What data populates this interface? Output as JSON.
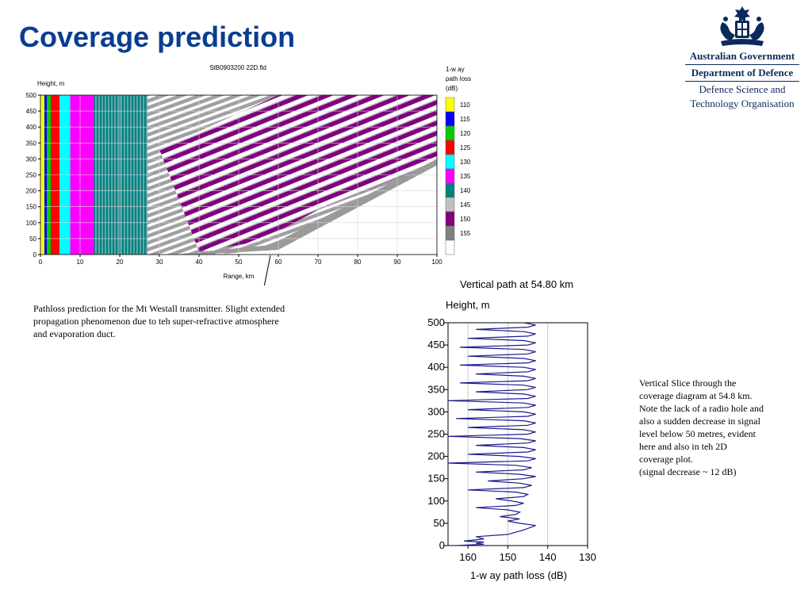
{
  "title": "Coverage prediction",
  "logo": {
    "line1": "Australian Government",
    "line2": "Department of Defence",
    "line3": "Defence Science and",
    "line4": "Technology Organisation"
  },
  "caption_left": {
    "line1": "Pathloss prediction  for the Mt Westall transmitter. Slight extended",
    "line2": "propagation phenomenon due to teh super-refractive atmosphere",
    "line3": "and evaporation duct."
  },
  "caption_right": {
    "lines": [
      "Vertical Slice through the",
      "coverage diagram at 54.8 km.",
      "Note the lack of a radio hole and",
      "also a sudden decrease in signal",
      "level below 50 metres, evident",
      "here and also in teh 2D",
      "coverage plot.",
      "(signal decrease ~ 12 dB)"
    ]
  },
  "colors": {
    "title": "#0a3d91",
    "purple": "#800080",
    "grey": "#a0a0a0",
    "teal": "#008080"
  },
  "chart_data": [
    {
      "type": "heatmap",
      "title": "StB0903200 22D.fld",
      "ylabel": "Height, m",
      "xlabel": "Range, km",
      "xlim": [
        0,
        100
      ],
      "ylim": [
        0,
        500
      ],
      "x_ticks": [
        "0",
        "10",
        "20",
        "30",
        "40",
        "50",
        "60",
        "70",
        "80",
        "90",
        "100"
      ],
      "y_ticks": [
        "0",
        "50",
        "100",
        "150",
        "200",
        "250",
        "300",
        "350",
        "400",
        "450",
        "500"
      ],
      "grid": true,
      "legend_title": [
        "1-w ay",
        "path loss",
        "(dB)"
      ],
      "legend": [
        {
          "label": "110",
          "color": "#ffff00"
        },
        {
          "label": "115",
          "color": "#0000ff"
        },
        {
          "label": "120",
          "color": "#00cc00"
        },
        {
          "label": "125",
          "color": "#ff0000"
        },
        {
          "label": "130",
          "color": "#00ffff"
        },
        {
          "label": "135",
          "color": "#ff00ff"
        },
        {
          "label": "140",
          "color": "#008080"
        },
        {
          "label": "145",
          "color": "#c0c0c0"
        },
        {
          "label": "150",
          "color": "#800080"
        },
        {
          "label": "155",
          "color": "#808080"
        },
        {
          "label": "",
          "color": "#ffffff"
        }
      ],
      "vertical_bands": [
        {
          "x0": 0,
          "x1": 1,
          "color": "#ffff00"
        },
        {
          "x0": 1,
          "x1": 1.6,
          "color": "#0000ff"
        },
        {
          "x0": 1.6,
          "x1": 2.6,
          "color": "#00cc00"
        },
        {
          "x0": 2.6,
          "x1": 4.8,
          "color": "#ff0000"
        },
        {
          "x0": 4.8,
          "x1": 7.5,
          "color": "#00ffff"
        },
        {
          "x0": 7.5,
          "x1": 13.5,
          "color": "#ff00ff"
        },
        {
          "x0": 13.5,
          "x1": 27,
          "color": "#008080"
        }
      ]
    },
    {
      "type": "line",
      "title": "Vertical path at 54.80 km",
      "ylabel": "Height, m",
      "xlabel": "1-w ay path loss (dB)",
      "xlim": [
        165,
        130
      ],
      "ylim": [
        0,
        500
      ],
      "x_ticks": [
        "160",
        "150",
        "140",
        "130"
      ],
      "y_ticks": [
        "0",
        "50",
        "100",
        "150",
        "200",
        "250",
        "300",
        "350",
        "400",
        "450",
        "500"
      ],
      "grid": true,
      "series": [
        {
          "values_loss_db": [
            163,
            156,
            158,
            156,
            161,
            156,
            158,
            150,
            146,
            143,
            147,
            150,
            147,
            152,
            148,
            147,
            150,
            158,
            148,
            146,
            149,
            153,
            146,
            145,
            148,
            160,
            146,
            144,
            147,
            155,
            146,
            143,
            147,
            158,
            146,
            144,
            148,
            165,
            145,
            143,
            147,
            160,
            145,
            143,
            146,
            158,
            145,
            143,
            147,
            165,
            145,
            143,
            146,
            160,
            145,
            143,
            146,
            163,
            145,
            143,
            146,
            160,
            145,
            143,
            146,
            165,
            145,
            143,
            146,
            158,
            145,
            143,
            146,
            162,
            145,
            143,
            146,
            158,
            145,
            143,
            146,
            162,
            145,
            143,
            146,
            160,
            145,
            143,
            146,
            162,
            145,
            143,
            146,
            160,
            145,
            143,
            146,
            158,
            145,
            143,
            146
          ],
          "heights_m": [
            0,
            3,
            5,
            8,
            10,
            15,
            20,
            25,
            35,
            45,
            50,
            55,
            60,
            65,
            70,
            75,
            80,
            85,
            90,
            95,
            100,
            105,
            110,
            115,
            120,
            125,
            130,
            135,
            140,
            145,
            150,
            155,
            160,
            165,
            170,
            175,
            180,
            185,
            190,
            195,
            200,
            205,
            210,
            215,
            220,
            225,
            230,
            235,
            240,
            245,
            250,
            255,
            260,
            265,
            270,
            275,
            280,
            285,
            290,
            295,
            300,
            305,
            310,
            315,
            320,
            325,
            330,
            335,
            340,
            345,
            350,
            355,
            360,
            365,
            370,
            375,
            380,
            385,
            390,
            395,
            400,
            405,
            410,
            415,
            420,
            425,
            430,
            435,
            440,
            445,
            450,
            455,
            460,
            465,
            470,
            475,
            480,
            485,
            490,
            495,
            500
          ]
        }
      ]
    }
  ]
}
